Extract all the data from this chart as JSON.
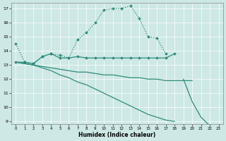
{
  "xlabel": "Humidex (Indice chaleur)",
  "xlim": [
    -0.5,
    23.5
  ],
  "ylim": [
    8.8,
    17.4
  ],
  "yticks": [
    9,
    10,
    11,
    12,
    13,
    14,
    15,
    16,
    17
  ],
  "xticks": [
    0,
    1,
    2,
    3,
    4,
    5,
    6,
    7,
    8,
    9,
    10,
    11,
    12,
    13,
    14,
    15,
    16,
    17,
    18,
    19,
    20,
    21,
    22,
    23
  ],
  "bg_color": "#cde8e5",
  "line_color": "#2e8b7a",
  "line1_x": [
    0,
    1,
    2,
    3,
    4,
    5,
    6,
    7,
    8,
    9,
    10,
    11,
    12,
    13,
    14,
    15,
    16,
    17
  ],
  "line1_y": [
    14.5,
    13.2,
    13.1,
    13.6,
    13.8,
    13.7,
    13.5,
    14.8,
    15.3,
    16.0,
    16.9,
    17.0,
    17.0,
    17.2,
    16.3,
    15.0,
    14.9,
    13.8
  ],
  "line2_x": [
    0,
    1,
    2,
    3,
    4,
    5,
    6,
    7,
    8,
    9,
    10,
    11,
    12,
    13,
    14,
    15,
    16,
    17,
    18
  ],
  "line2_y": [
    13.2,
    13.2,
    13.1,
    13.6,
    13.8,
    13.5,
    13.5,
    13.6,
    13.5,
    13.5,
    13.5,
    13.5,
    13.5,
    13.5,
    13.5,
    13.5,
    13.5,
    13.5,
    13.8
  ],
  "line3_x": [
    0,
    1,
    2,
    3,
    4,
    5,
    6,
    7,
    8,
    9,
    10,
    11,
    12,
    13,
    14,
    15,
    16,
    17,
    18,
    19,
    20
  ],
  "line3_y": [
    13.2,
    13.1,
    13.0,
    12.9,
    12.8,
    12.7,
    12.6,
    12.5,
    12.5,
    12.4,
    12.3,
    12.3,
    12.2,
    12.1,
    12.1,
    12.0,
    12.0,
    11.9,
    11.9,
    11.9,
    11.9
  ],
  "line4_x": [
    0,
    1,
    2,
    3,
    4,
    5,
    6,
    7,
    8,
    9,
    10,
    11,
    12,
    13,
    14,
    15,
    16,
    17,
    18,
    19,
    20,
    21,
    22,
    23
  ],
  "line4_y": [
    13.2,
    13.1,
    13.0,
    12.8,
    12.6,
    12.3,
    12.1,
    11.8,
    11.6,
    11.3,
    11.0,
    10.7,
    10.4,
    10.1,
    9.8,
    9.5,
    9.3,
    9.1,
    9.0,
    12.0,
    10.4,
    9.3,
    8.7,
    8.6
  ]
}
